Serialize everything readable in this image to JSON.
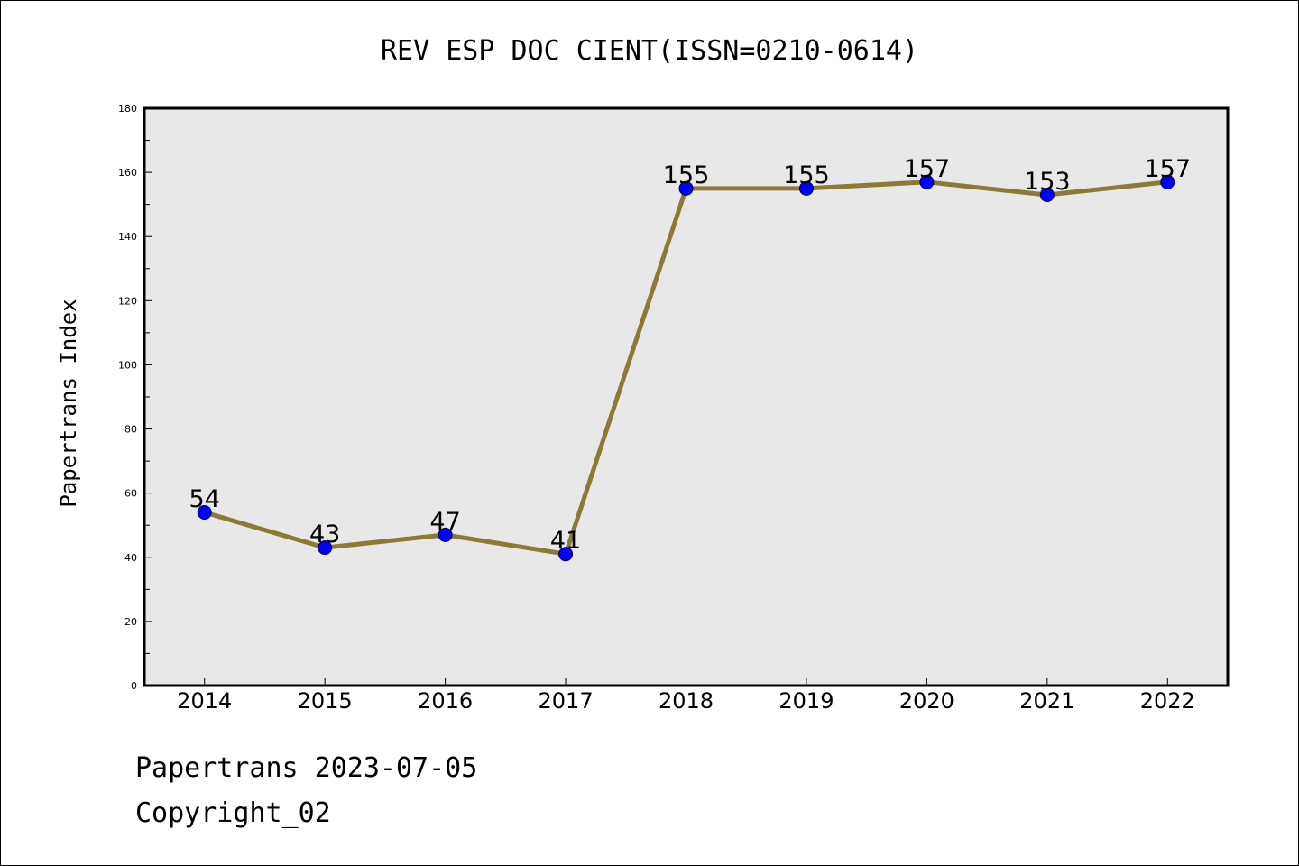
{
  "colors": {
    "plot_background": "#e8e8e8",
    "line": "#8b7a35",
    "marker": "#0000ff",
    "axis": "#000000"
  },
  "footer": {
    "source": "Papertrans 2023-07-05",
    "copyright": "Copyright_02"
  },
  "chart_data": {
    "type": "line",
    "title": "REV ESP DOC CIENT(ISSN=0210-0614)",
    "xlabel": "",
    "ylabel": "Papertrans Index",
    "ylim": [
      0,
      180
    ],
    "yticks": [
      "0",
      "20",
      "40",
      "60",
      "80",
      "100",
      "120",
      "140",
      "160",
      "180"
    ],
    "categories": [
      "2014",
      "2015",
      "2016",
      "2017",
      "2018",
      "2019",
      "2020",
      "2021",
      "2022"
    ],
    "series": [
      {
        "values": [
          54,
          43,
          47,
          41,
          155,
          155,
          157,
          153,
          157
        ],
        "labels": [
          "54",
          "43",
          "47",
          "41",
          "155",
          "155",
          "157",
          "153",
          "157"
        ]
      }
    ],
    "grid": false,
    "legend": "none"
  }
}
